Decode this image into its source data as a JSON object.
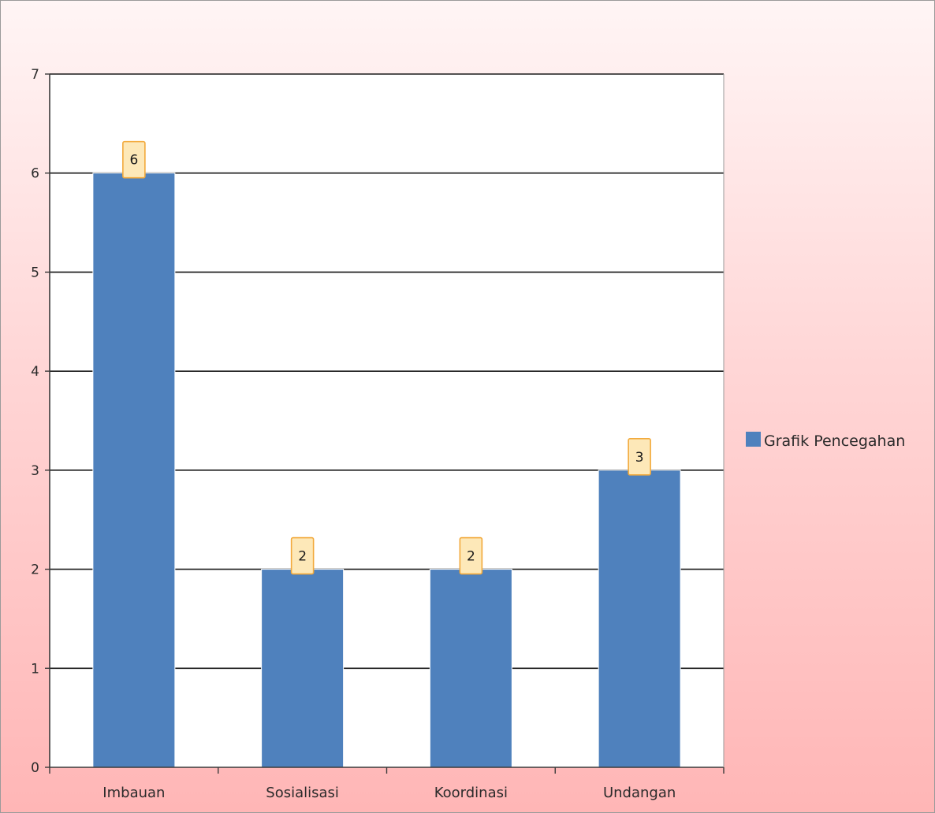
{
  "chart_data": {
    "type": "bar",
    "categories": [
      "Imbauan",
      "Sosialisasi",
      "Koordinasi",
      "Undangan"
    ],
    "series": [
      {
        "name": "Grafik Pencegahan",
        "values": [
          6,
          2,
          2,
          3
        ]
      }
    ],
    "data_labels": [
      "6",
      "2",
      "2",
      "3"
    ],
    "y_ticks": [
      "0",
      "1",
      "2",
      "3",
      "4",
      "5",
      "6",
      "7"
    ],
    "ylim": [
      0,
      7
    ],
    "grid": true,
    "legend_position": "right",
    "colors": {
      "bar": "#4f81bd",
      "gridline": "#1a1a1a",
      "plot_background": "#ffffff",
      "data_label_background": "#fde8b8",
      "data_label_border": "#f2a93b"
    }
  }
}
